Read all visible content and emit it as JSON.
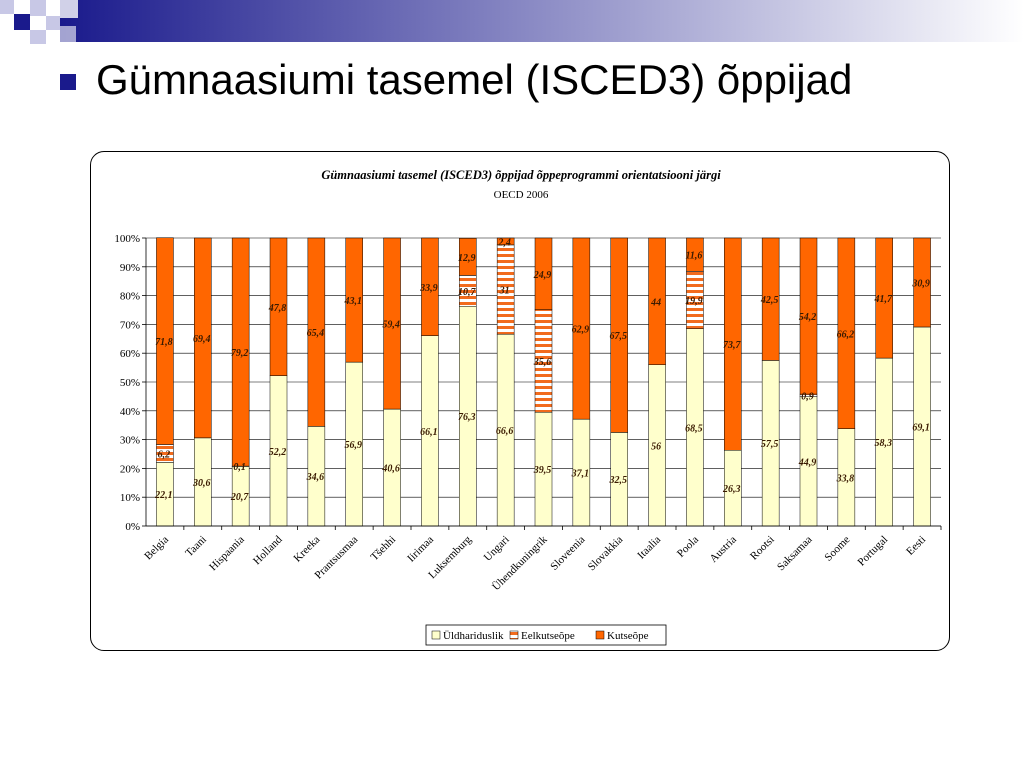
{
  "slide": {
    "title": "Gümnaasiumi tasemel (ISCED3) õppijad"
  },
  "colors": {
    "general": "#ffffcc",
    "combined": "#f26b1d",
    "vocational": "#ff6600",
    "bullet": "#1a1a8c",
    "deco_dark": "#1a1a8c",
    "deco_light": "#c8c8e6"
  },
  "chart_data": {
    "type": "bar",
    "stacked": true,
    "percent": true,
    "title": "Gümnaasiumi tasemel (ISCED3) õppijad õppeprogrammi orientatsiooni järgi",
    "subtitle": "OECD 2006",
    "ylim": [
      0,
      100
    ],
    "yticks": [
      "0%",
      "10%",
      "20%",
      "30%",
      "40%",
      "50%",
      "60%",
      "70%",
      "80%",
      "90%",
      "100%"
    ],
    "grid": true,
    "legend_position": "bottom",
    "categories": [
      "Belgia",
      "Taani",
      "Hispaania",
      "Holland",
      "Kreeka",
      "Prantsusmaa",
      "Tšehhi",
      "Iirimaa",
      "Luksemburg",
      "Ungari",
      "Ühendkuningrik",
      "Sloveenia",
      "Slovakkia",
      "Itaalia",
      "Poola",
      "Austria",
      "Rootsi",
      "Saksamaa",
      "Soome",
      "Portugal",
      "Eesti"
    ],
    "series": [
      {
        "name": "Üldhariduslik",
        "values": [
          22.1,
          30.6,
          20.7,
          52.2,
          34.6,
          56.9,
          40.6,
          66.1,
          76.3,
          66.6,
          39.5,
          37.1,
          32.5,
          56,
          68.5,
          26.3,
          57.5,
          44.9,
          33.8,
          58.3,
          69.1
        ],
        "labels": [
          "22,1",
          "30,6",
          "20,7",
          "52,2",
          "34,6",
          "56,9",
          "40,6",
          "66,1",
          "76,3",
          "66,6",
          "39,5",
          "37,1",
          "32,5",
          "56",
          "68,5",
          "26,3",
          "57,5",
          "44,9",
          "33,8",
          "58,3",
          "69,1"
        ]
      },
      {
        "name": "Eelkutseõpe",
        "values": [
          6.2,
          0,
          0.1,
          0,
          0,
          0,
          0,
          0,
          10.7,
          31,
          35.6,
          0,
          0,
          0,
          19.9,
          0,
          0,
          0.9,
          0,
          0,
          0
        ],
        "labels": [
          "6,2",
          "",
          "0,1",
          "",
          "",
          "",
          "",
          "",
          "10,7",
          "31",
          "35,6",
          "",
          "",
          "",
          "19,9",
          "",
          "",
          "0,9",
          "",
          "",
          ""
        ]
      },
      {
        "name": "Kutseõpe",
        "values": [
          71.8,
          69.4,
          79.2,
          47.8,
          65.4,
          43.1,
          59.4,
          33.9,
          12.9,
          2.4,
          24.9,
          62.9,
          67.5,
          44,
          11.6,
          73.7,
          42.5,
          54.2,
          66.2,
          41.7,
          30.9
        ],
        "labels": [
          "71,8",
          "69,4",
          "79,2",
          "47,8",
          "65,4",
          "43,1",
          "59,4",
          "33,9",
          "12,9",
          "2,4",
          "24,9",
          "62,9",
          "67,5",
          "44",
          "11,6",
          "73,7",
          "42,5",
          "54,2",
          "66,2",
          "41,7",
          "30,9"
        ]
      }
    ]
  }
}
